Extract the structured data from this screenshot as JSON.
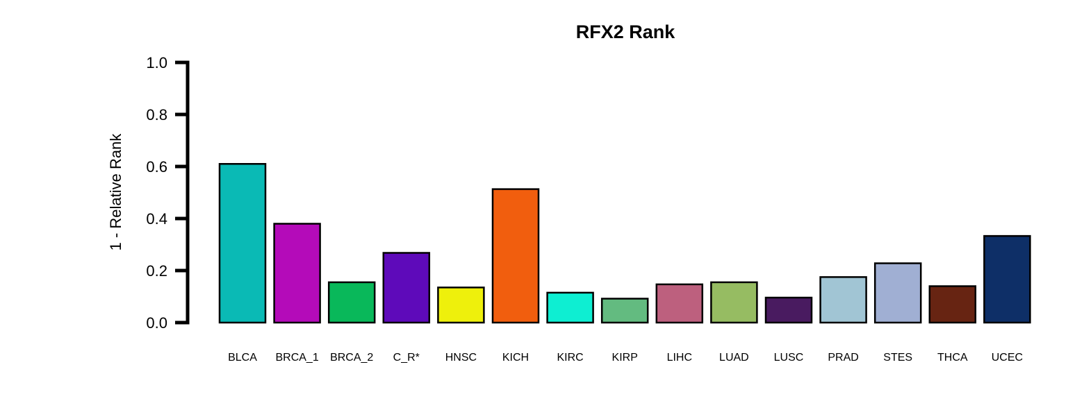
{
  "chart_data": {
    "type": "bar",
    "title": "RFX2 Rank",
    "xlabel": "",
    "ylabel": "1 - Relative Rank",
    "ylim": [
      0,
      1.0
    ],
    "yticks": [
      "0.0",
      "0.2",
      "0.4",
      "0.6",
      "0.8",
      "1.0"
    ],
    "ytick_values": [
      0,
      0.2,
      0.4,
      0.6,
      0.8,
      1.0
    ],
    "grid": false,
    "legend": "none",
    "categories": [
      "BLCA",
      "BRCA_1",
      "BRCA_2",
      "C_R*",
      "HNSC",
      "KICH",
      "KIRC",
      "KIRP",
      "LIHC",
      "LUAD",
      "LUSC",
      "PRAD",
      "STES",
      "THCA",
      "UCEC"
    ],
    "values": [
      0.61,
      0.38,
      0.155,
      0.268,
      0.135,
      0.513,
      0.115,
      0.092,
      0.147,
      0.155,
      0.096,
      0.175,
      0.228,
      0.14,
      0.333
    ],
    "colors": [
      "#0ABAB5",
      "#B40BB9",
      "#09B85A",
      "#5E0ABA",
      "#EEF00C",
      "#F15E0E",
      "#0EEED2",
      "#63BB80",
      "#BD607E",
      "#96BC62",
      "#491B60",
      "#A1C5D4",
      "#A0AFD3",
      "#672412",
      "#0E2F67"
    ],
    "bar_edge_color": "#000000"
  }
}
